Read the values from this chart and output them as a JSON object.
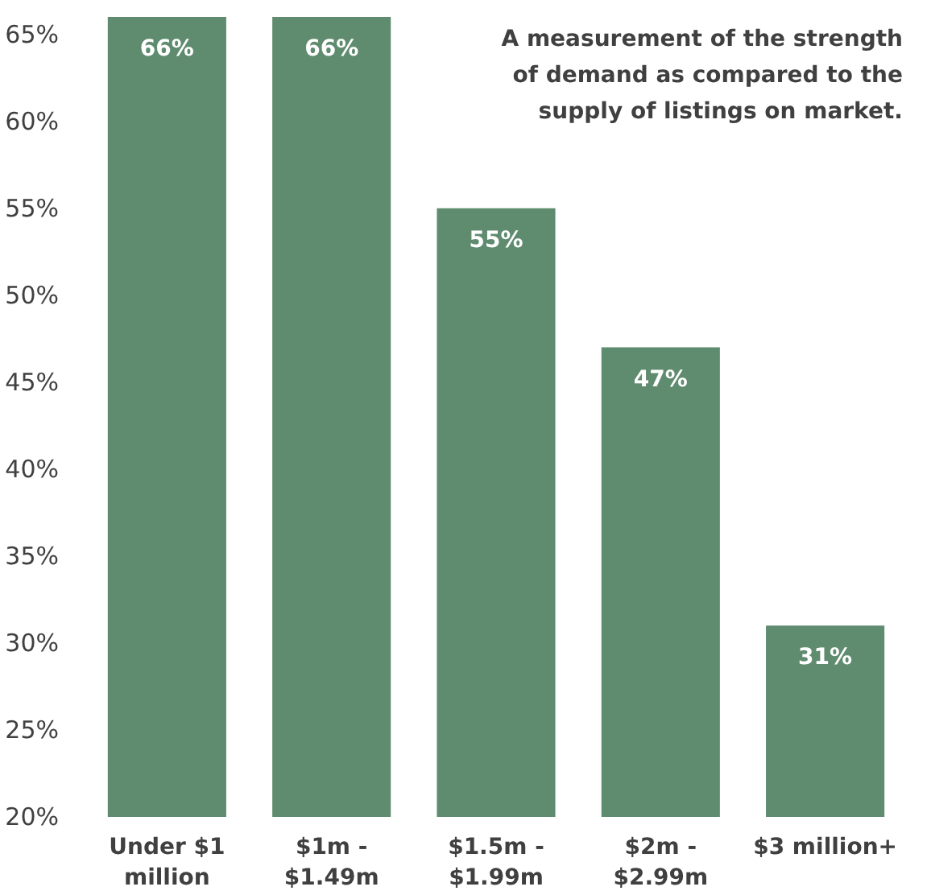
{
  "chart_data": {
    "type": "bar",
    "categories": [
      "Under $1\nmillion",
      "$1m -\n$1.49m",
      "$1.5m -\n$1.99m",
      "$2m -\n$2.99m",
      "$3 million+"
    ],
    "values": [
      66,
      66,
      55,
      47,
      31
    ],
    "color": "#5f8b6f",
    "ylim": [
      20,
      66
    ],
    "yticks": [
      {
        "value": 20,
        "label": "20%"
      },
      {
        "value": 25,
        "label": "25%"
      },
      {
        "value": 30,
        "label": "30%"
      },
      {
        "value": 35,
        "label": "35%"
      },
      {
        "value": 40,
        "label": "40%"
      },
      {
        "value": 45,
        "label": "45%"
      },
      {
        "value": 50,
        "label": "50%"
      },
      {
        "value": 55,
        "label": "55%"
      },
      {
        "value": 60,
        "label": "60%"
      },
      {
        "value": 65,
        "label": "65%"
      }
    ],
    "value_labels": [
      "66%",
      "66%",
      "55%",
      "47%",
      "31%"
    ],
    "annotations": [
      "A measurement of the strength\nof demand as compared to the\nsupply of listings on market."
    ],
    "grid": false
  }
}
